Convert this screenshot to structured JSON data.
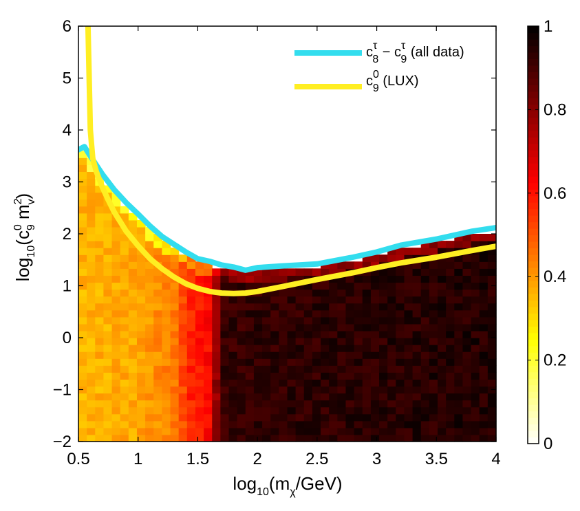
{
  "chart_data": {
    "type": "heatmap",
    "title": "",
    "xlabel": {
      "prefix": "log",
      "sub1": "10",
      "open": "(m",
      "sub2": "χ",
      "close": "/GeV)"
    },
    "ylabel": {
      "prefix": "log",
      "sub1": "10",
      "open": "(c",
      "sup2": "0",
      "sub2": "9",
      "mid": " m",
      "sup3": "2",
      "sub3": "v",
      "close": ")"
    },
    "xlim": [
      0.5,
      4
    ],
    "ylim": [
      -2,
      6
    ],
    "xticks": [
      0.5,
      1,
      1.5,
      2,
      2.5,
      3,
      3.5,
      4
    ],
    "xtick_labels": [
      "0.5",
      "1",
      "1.5",
      "2",
      "2.5",
      "3",
      "3.5",
      "4"
    ],
    "yticks": [
      -2,
      -1,
      0,
      1,
      2,
      3,
      4,
      5,
      6
    ],
    "ytick_labels": [
      "−2",
      "−1",
      "0",
      "1",
      "2",
      "3",
      "4",
      "5",
      "6"
    ],
    "colorbar": {
      "range": [
        0,
        1
      ],
      "ticks": [
        0,
        0.2,
        0.4,
        0.6,
        0.8,
        1
      ],
      "tick_labels": [
        "0",
        "0.2",
        "0.4",
        "0.6",
        "0.8",
        "1"
      ],
      "colormap": "hot_reversed"
    },
    "heatmap_grid": {
      "nx": 50,
      "ny": 60
    },
    "heatmap_value_profile": {
      "x": [
        0.5,
        1.0,
        1.3,
        1.45,
        1.6,
        1.7,
        2.0,
        4.0
      ],
      "value": [
        0.36,
        0.38,
        0.45,
        0.58,
        0.62,
        0.92,
        0.93,
        0.95
      ]
    },
    "series": [
      {
        "name": "c8tau-c9tau (all data)",
        "color": "#33ddee",
        "x": [
          0.5,
          0.55,
          0.6,
          0.7,
          0.8,
          0.9,
          1.0,
          1.1,
          1.2,
          1.3,
          1.4,
          1.5,
          1.6,
          1.7,
          1.8,
          1.9,
          2.0,
          2.2,
          2.5,
          2.8,
          3.0,
          3.2,
          3.5,
          3.8,
          4.0
        ],
        "y": [
          3.62,
          3.68,
          3.5,
          3.15,
          2.85,
          2.6,
          2.38,
          2.15,
          1.95,
          1.8,
          1.65,
          1.52,
          1.47,
          1.4,
          1.36,
          1.3,
          1.35,
          1.38,
          1.42,
          1.55,
          1.65,
          1.78,
          1.9,
          2.05,
          2.12
        ]
      },
      {
        "name": "c9_0 (LUX)",
        "color": "#ffee22",
        "x": [
          0.58,
          0.6,
          0.62,
          0.65,
          0.7,
          0.75,
          0.8,
          0.9,
          1.0,
          1.1,
          1.2,
          1.3,
          1.4,
          1.5,
          1.6,
          1.7,
          1.8,
          1.9,
          2.0,
          2.2,
          2.5,
          2.8,
          3.0,
          3.2,
          3.5,
          3.8,
          4.0
        ],
        "y": [
          6.0,
          4.0,
          3.45,
          3.2,
          2.9,
          2.65,
          2.42,
          2.05,
          1.77,
          1.52,
          1.33,
          1.17,
          1.04,
          0.95,
          0.89,
          0.86,
          0.85,
          0.86,
          0.89,
          0.98,
          1.12,
          1.25,
          1.35,
          1.44,
          1.55,
          1.68,
          1.76
        ]
      }
    ],
    "legend": {
      "placement": "top-right",
      "entries": [
        {
          "color": "#33ddee",
          "base": "c",
          "sup1": "τ",
          "sub1": "8",
          "dash": " − c",
          "sup2": "τ",
          "sub2": "9",
          "tail": " (all data)"
        },
        {
          "color": "#ffee22",
          "base": "c",
          "sup1": "0",
          "sub1": "9",
          "tail": " (LUX)"
        }
      ]
    }
  }
}
